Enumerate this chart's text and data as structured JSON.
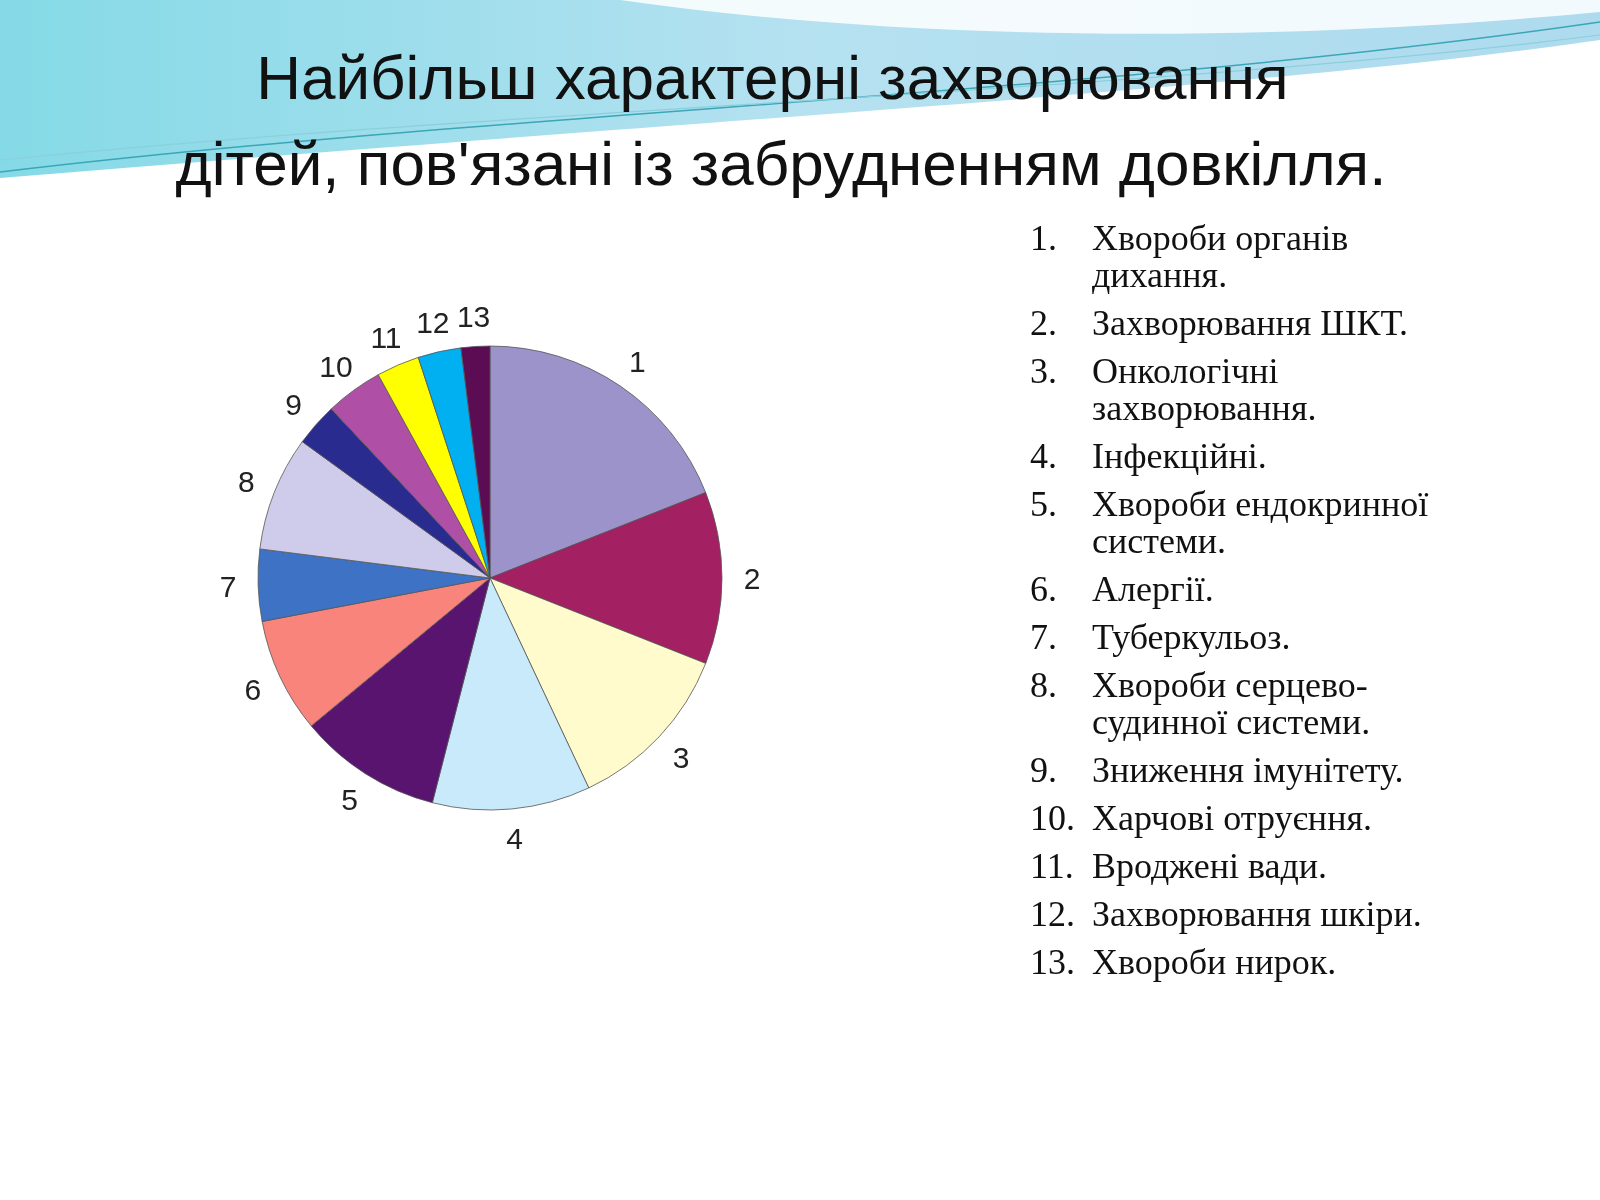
{
  "chart_data": {
    "type": "pie",
    "title": "Найбільш характерні захворювання\nдітей, пов'язані із забрудненням довкілля.",
    "categories": [
      "1",
      "2",
      "3",
      "4",
      "5",
      "6",
      "7",
      "8",
      "9",
      "10",
      "11",
      "12",
      "13"
    ],
    "values": [
      19,
      12,
      12,
      11,
      10,
      8,
      5,
      8,
      3,
      4,
      3,
      3,
      2
    ],
    "colors": [
      "#9b93c9",
      "#a32062",
      "#fffbcc",
      "#c8eafb",
      "#58146e",
      "#f8847c",
      "#3d72c4",
      "#cfcbea",
      "#2a2b8f",
      "#b04fa6",
      "#ffff00",
      "#00b0f0",
      "#5b0c52"
    ],
    "annotations": [
      "1. Хвороби органів дихання.",
      "2. Захворювання ШКТ.",
      "3. Онкологічні захворювання.",
      "4. Інфекційні.",
      "5. Хвороби ендокринної системи.",
      "6. Алергії.",
      "7. Туберкульоз.",
      "8. Хвороби серцево-судинної системи.",
      "9. Зниження імунітету.",
      "10. Харчові отруєння.",
      "11. Вроджені вади.",
      "12. Захворювання шкіри.",
      "13. Хвороби нирок."
    ]
  }
}
